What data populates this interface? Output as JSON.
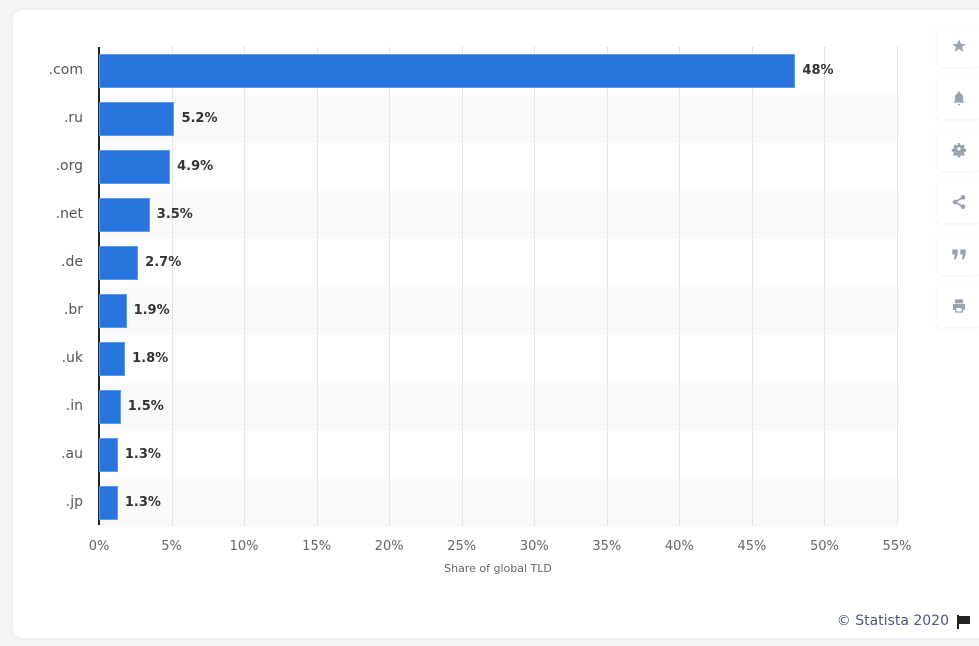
{
  "chart_data": {
    "type": "bar",
    "orientation": "horizontal",
    "title": "",
    "xlabel": "Share of global TLD",
    "ylabel": "",
    "categories": [
      ".com",
      ".ru",
      ".org",
      ".net",
      ".de",
      ".br",
      ".uk",
      ".in",
      ".au",
      ".jp"
    ],
    "values": [
      48,
      5.2,
      4.9,
      3.5,
      2.7,
      1.9,
      1.8,
      1.5,
      1.3,
      1.3
    ],
    "value_labels": [
      "48%",
      "5.2%",
      "4.9%",
      "3.5%",
      "2.7%",
      "1.9%",
      "1.8%",
      "1.5%",
      "1.3%",
      "1.3%"
    ],
    "xlim": [
      0,
      55
    ],
    "x_ticks": [
      "0%",
      "5%",
      "10%",
      "15%",
      "20%",
      "25%",
      "30%",
      "35%",
      "40%",
      "45%",
      "50%",
      "55%"
    ],
    "grid": true,
    "bar_color": "#2876dd",
    "legend": null
  },
  "sidebar": {
    "buttons": [
      {
        "icon": "star-icon",
        "label": "favorite"
      },
      {
        "icon": "bell-icon",
        "label": "notifications"
      },
      {
        "icon": "gear-icon",
        "label": "settings"
      },
      {
        "icon": "share-icon",
        "label": "share"
      },
      {
        "icon": "quote-icon",
        "label": "cite"
      },
      {
        "icon": "print-icon",
        "label": "print"
      }
    ]
  },
  "footer": {
    "credit": "© Statista 2020"
  }
}
